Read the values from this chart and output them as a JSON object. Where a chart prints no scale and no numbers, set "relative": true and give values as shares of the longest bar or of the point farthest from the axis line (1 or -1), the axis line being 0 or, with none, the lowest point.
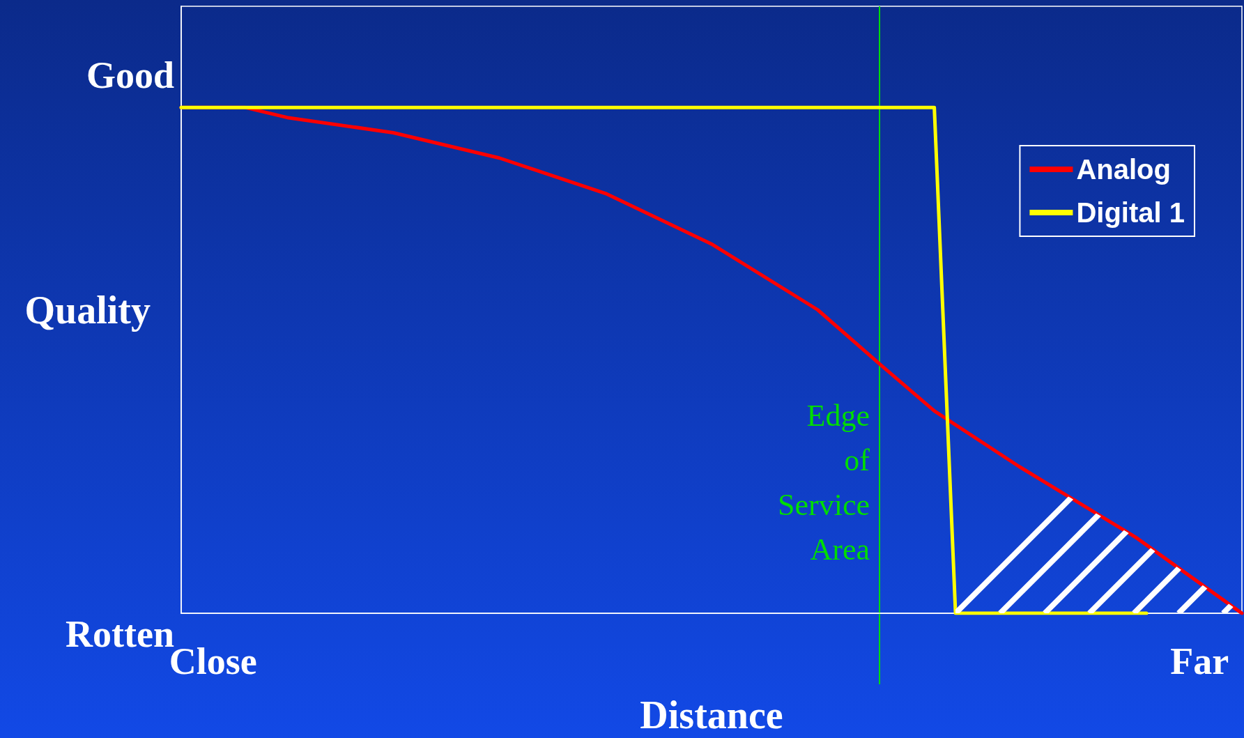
{
  "chart_data": {
    "type": "line",
    "relative": true,
    "xlabel": "Distance",
    "ylabel": "Quality",
    "categories": [
      null,
      null,
      null,
      "Close",
      null,
      null,
      null,
      null,
      null,
      null,
      null,
      null,
      null,
      null,
      null,
      null,
      null,
      null,
      null,
      null,
      null,
      null,
      null,
      null,
      null,
      null,
      null,
      null,
      null,
      null,
      null,
      null,
      null,
      null,
      null,
      null,
      null,
      null,
      null,
      null,
      null,
      null,
      null,
      null,
      null,
      null,
      null,
      null,
      null,
      null,
      null,
      null,
      null,
      null,
      null,
      null,
      null,
      null,
      null,
      null,
      null,
      null,
      null,
      null,
      null,
      null,
      null,
      null,
      null,
      null,
      null,
      null,
      null,
      null,
      null,
      null,
      null,
      null,
      null,
      null,
      null,
      null,
      null,
      null,
      null,
      null,
      null,
      null,
      null,
      null,
      null,
      null,
      null,
      null,
      null,
      null,
      "Far",
      null,
      null,
      null,
      null
    ],
    "series": [
      {
        "name": "Analog",
        "color": "#ff0000",
        "values": [
          1,
          null,
          null,
          null,
          null,
          null,
          1,
          null,
          null,
          null,
          0.98,
          null,
          null,
          null,
          null,
          null,
          null,
          null,
          null,
          null,
          0.95,
          null,
          null,
          null,
          null,
          null,
          null,
          null,
          null,
          null,
          0.9,
          null,
          null,
          null,
          null,
          null,
          null,
          null,
          null,
          null,
          0.83,
          null,
          null,
          null,
          null,
          null,
          null,
          null,
          null,
          null,
          0.73,
          null,
          null,
          null,
          null,
          null,
          null,
          null,
          null,
          null,
          0.6,
          null,
          null,
          null,
          null,
          null,
          0.49,
          null,
          null,
          null,
          null,
          0.4,
          null,
          null,
          null,
          null,
          null,
          null,
          null,
          0.29,
          null,
          null,
          null,
          null,
          null,
          null,
          null,
          null,
          null,
          null,
          0.15,
          null,
          null,
          null,
          null,
          null,
          null,
          null,
          null,
          null,
          0
        ]
      },
      {
        "name": "Digital 1",
        "color": "#ffff00",
        "values": [
          1,
          null,
          null,
          null,
          null,
          null,
          null,
          null,
          null,
          null,
          null,
          null,
          null,
          null,
          null,
          null,
          null,
          null,
          null,
          null,
          null,
          null,
          null,
          null,
          null,
          null,
          null,
          null,
          null,
          null,
          null,
          null,
          null,
          null,
          null,
          null,
          null,
          null,
          null,
          null,
          null,
          null,
          null,
          null,
          null,
          null,
          null,
          null,
          null,
          null,
          null,
          null,
          null,
          null,
          null,
          null,
          null,
          null,
          null,
          null,
          null,
          null,
          null,
          null,
          null,
          null,
          null,
          null,
          null,
          null,
          null,
          1,
          null,
          0,
          null,
          null,
          null,
          null,
          null,
          null,
          null,
          null,
          null,
          null,
          null,
          null,
          null,
          null,
          null,
          null,
          null,
          0,
          null,
          null,
          null,
          null,
          null,
          null,
          null,
          null,
          null
        ]
      }
    ],
    "annotations": [
      "Good",
      "Rotten",
      "Edge\nof\nService\nArea"
    ],
    "legend": "top right",
    "grid": false,
    "marker": "none",
    "line_style": "solid"
  }
}
